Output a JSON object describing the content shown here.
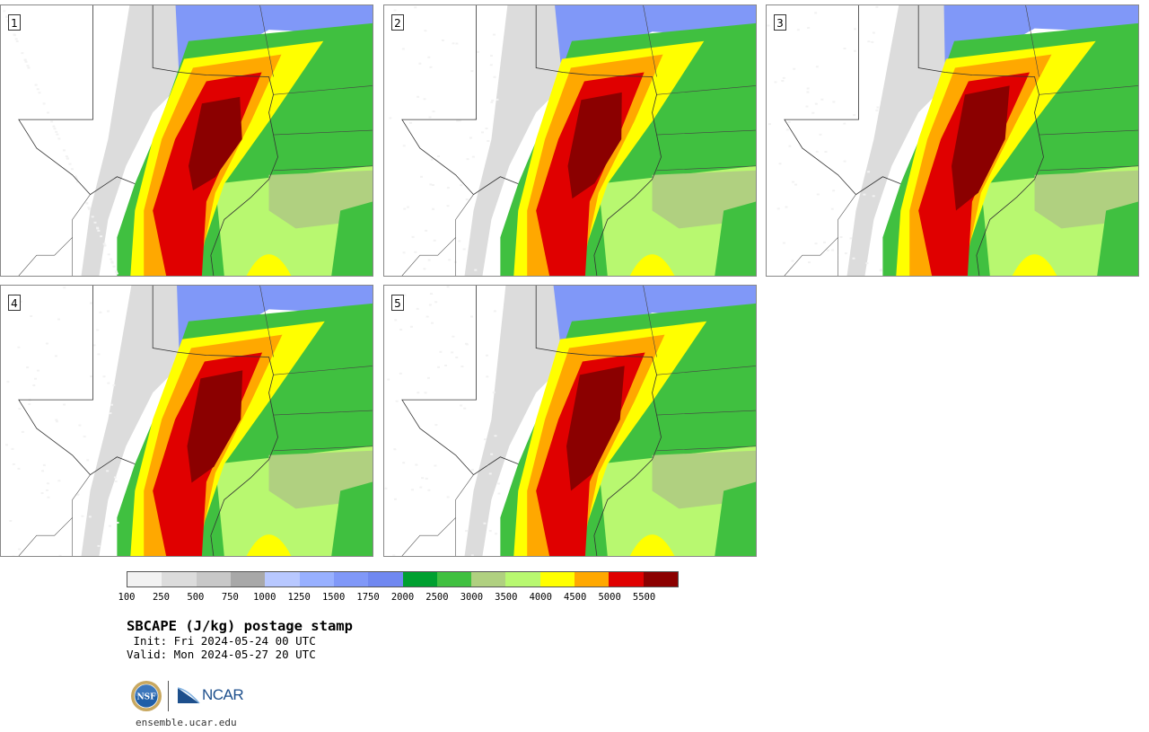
{
  "title": "SBCAPE (J/kg) postage stamp",
  "init": " Init: Fri 2024-05-24 00 UTC",
  "valid": "Valid: Mon 2024-05-27 20 UTC",
  "site": "ensemble.ucar.edu",
  "logos": {
    "nsf": "NSF",
    "ncar": "NCAR"
  },
  "panels": [
    {
      "label": "1",
      "east": 0.7,
      "bulge": 0.0,
      "intensity": 0.75,
      "north": 0.15
    },
    {
      "label": "2",
      "east": 0.6,
      "bulge": 0.15,
      "intensity": 0.85,
      "north": 0.3
    },
    {
      "label": "3",
      "east": 0.95,
      "bulge": 0.1,
      "intensity": 1.0,
      "north": 0.05
    },
    {
      "label": "4",
      "east": 0.75,
      "bulge": 0.05,
      "intensity": 0.9,
      "north": 0.1
    },
    {
      "label": "5",
      "east": 0.7,
      "bulge": 0.2,
      "intensity": 1.0,
      "north": 0.35
    }
  ],
  "colorbar": {
    "colors": [
      "#f2f2f2",
      "#dcdcdc",
      "#c8c8c8",
      "#a8a8a8",
      "#b8c8ff",
      "#98b0ff",
      "#8098f8",
      "#7088f0",
      "#00a030",
      "#40c040",
      "#b0d080",
      "#b8f870",
      "#ffff00",
      "#ffa800",
      "#e00000",
      "#8b0000"
    ],
    "ticks": [
      "100",
      "250",
      "500",
      "750",
      "1000",
      "1250",
      "1500",
      "1750",
      "2000",
      "2500",
      "3000",
      "3500",
      "4000",
      "4500",
      "5000",
      "5500"
    ]
  }
}
